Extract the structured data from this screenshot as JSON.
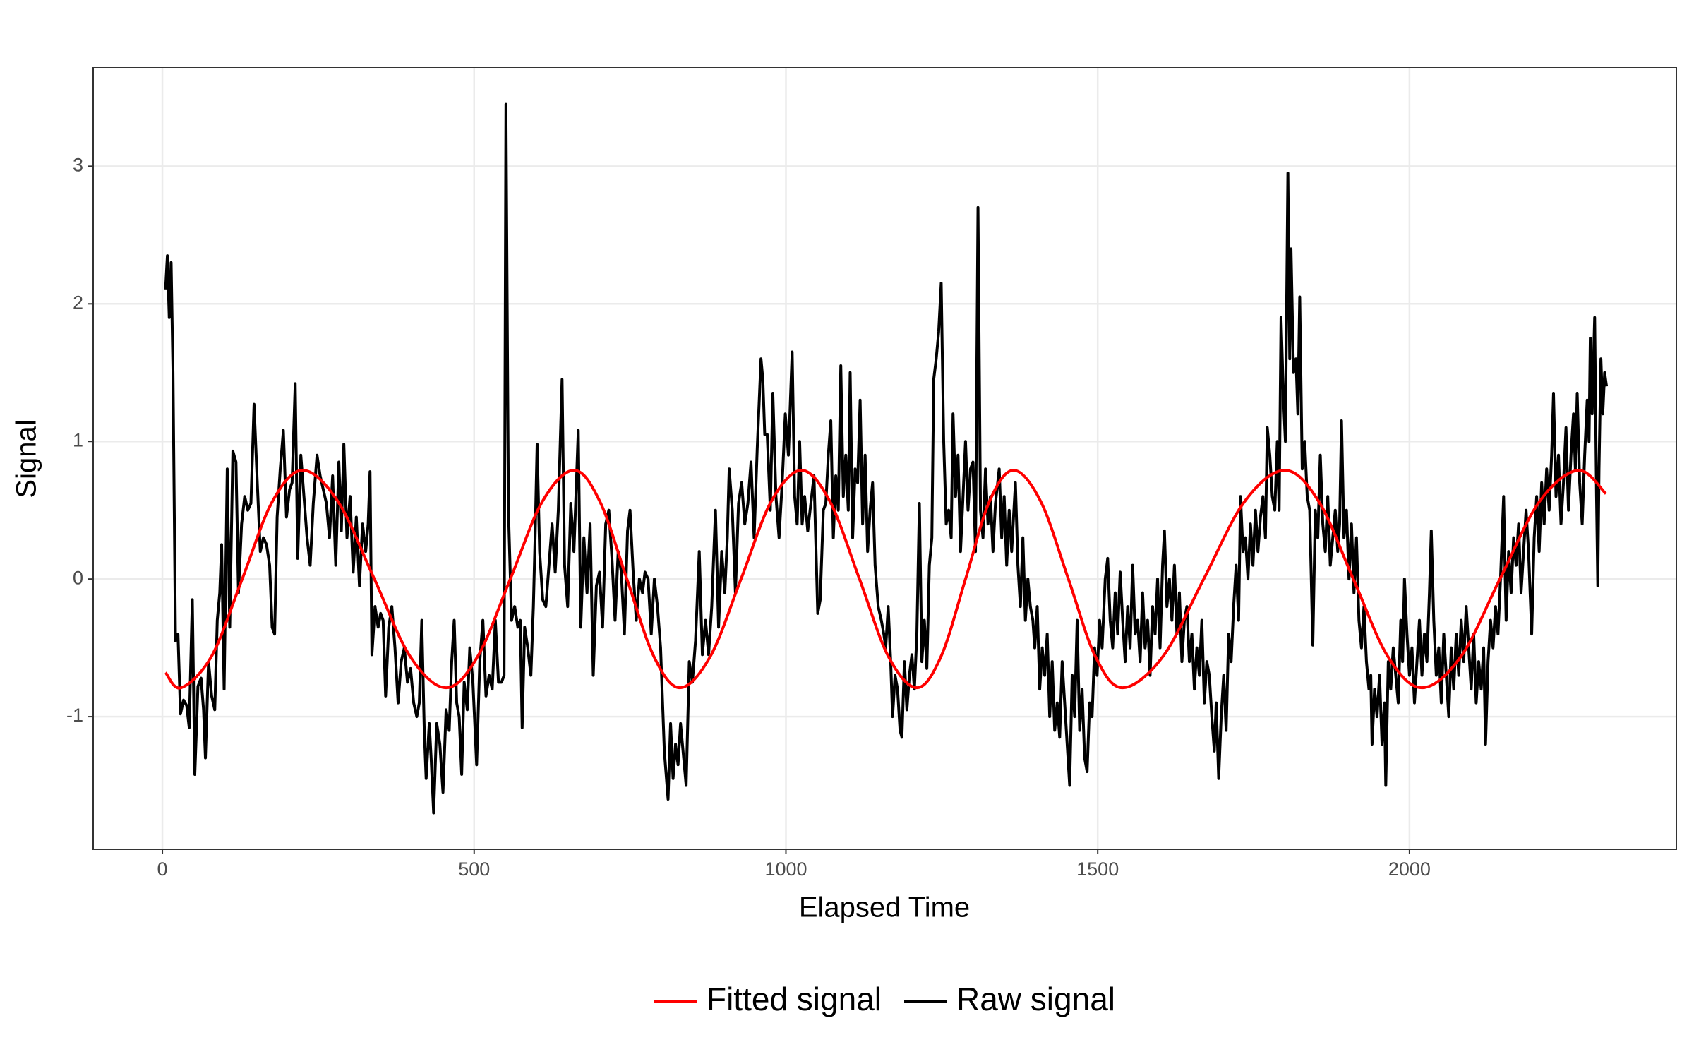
{
  "chart_data": {
    "type": "line",
    "x_label": "Elapsed Time",
    "y_label": "Signal",
    "xlim": [
      -111,
      2428
    ],
    "ylim": [
      -1.964,
      3.715
    ],
    "xticks": [
      0,
      500,
      1000,
      1500,
      2000
    ],
    "yticks": [
      -1,
      0,
      1,
      2,
      3
    ],
    "grid": true,
    "legend": "bottom",
    "series": [
      {
        "name": "Fitted signal",
        "color": "#ff0000",
        "smooth": true,
        "x": [
          5,
          30,
          79,
          128,
          176,
          225,
          282,
          340,
          397,
          455,
          506,
          558,
          609,
          660,
          702,
          745,
          788,
          830,
          879,
          928,
          976,
          1025,
          1071,
          1118,
          1164,
          1210,
          1249,
          1288,
          1326,
          1365,
          1409,
          1453,
          1496,
          1540,
          1605,
          1670,
          1735,
          1800,
          1855,
          1910,
          1965,
          2020,
          2083,
          2145,
          2208,
          2270,
          2315
        ],
        "values": [
          -0.68,
          -0.79,
          -0.56,
          0,
          0.56,
          0.79,
          0.56,
          0,
          -0.56,
          -0.79,
          -0.56,
          0,
          0.56,
          0.79,
          0.56,
          0,
          -0.56,
          -0.79,
          -0.56,
          0,
          0.56,
          0.79,
          0.56,
          0,
          -0.56,
          -0.79,
          -0.56,
          0,
          0.56,
          0.79,
          0.56,
          0,
          -0.56,
          -0.79,
          -0.56,
          0,
          0.56,
          0.79,
          0.56,
          0,
          -0.56,
          -0.79,
          -0.56,
          0,
          0.56,
          0.79,
          0.62
        ]
      },
      {
        "name": "Raw signal",
        "color": "#000000",
        "smooth": false,
        "x": [
          5,
          8,
          11,
          14,
          17,
          21,
          25,
          29,
          34,
          39,
          43,
          48,
          52,
          57,
          62,
          66,
          69,
          74,
          79,
          84,
          88,
          92,
          95,
          99,
          104,
          108,
          113,
          118,
          122,
          127,
          132,
          137,
          142,
          147,
          152,
          157,
          162,
          167,
          172,
          176,
          180,
          184,
          189,
          194,
          199,
          204,
          208,
          213,
          217,
          222,
          227,
          232,
          237,
          242,
          248,
          253,
          258,
          263,
          268,
          273,
          278,
          283,
          287,
          291,
          296,
          301,
          306,
          311,
          316,
          321,
          326,
          330,
          333,
          336,
          341,
          346,
          350,
          354,
          358,
          363,
          368,
          373,
          378,
          383,
          388,
          393,
          398,
          403,
          408,
          412,
          416,
          420,
          423,
          428,
          431,
          435,
          440,
          445,
          450,
          455,
          460,
          464,
          468,
          472,
          476,
          480,
          484,
          489,
          493,
          498,
          504,
          509,
          514,
          519,
          524,
          529,
          534,
          539,
          544,
          548,
          551,
          555,
          560,
          565,
          570,
          574,
          577,
          581,
          586,
          591,
          595,
          598,
          601,
          605,
          610,
          615,
          620,
          625,
          630,
          635,
          641,
          645,
          650,
          655,
          660,
          664,
          667,
          671,
          676,
          681,
          686,
          691,
          696,
          701,
          706,
          711,
          716,
          721,
          726,
          731,
          736,
          741,
          746,
          750,
          755,
          760,
          765,
          770,
          774,
          779,
          784,
          789,
          794,
          799,
          805,
          811,
          815,
          819,
          823,
          827,
          831,
          836,
          840,
          845,
          850,
          855,
          861,
          866,
          871,
          876,
          881,
          887,
          892,
          897,
          902,
          906,
          909,
          914,
          919,
          924,
          929,
          934,
          939,
          944,
          949,
          954,
          960,
          963,
          966,
          970,
          975,
          979,
          984,
          989,
          994,
          999,
          1004,
          1010,
          1014,
          1018,
          1022,
          1026,
          1030,
          1035,
          1040,
          1045,
          1051,
          1055,
          1060,
          1064,
          1068,
          1072,
          1076,
          1080,
          1084,
          1088,
          1092,
          1096,
          1100,
          1103,
          1107,
          1111,
          1115,
          1119,
          1123,
          1127,
          1131,
          1135,
          1139,
          1143,
          1148,
          1153,
          1157,
          1160,
          1164,
          1168,
          1171,
          1175,
          1179,
          1183,
          1186,
          1190,
          1194,
          1198,
          1202,
          1206,
          1210,
          1214,
          1218,
          1222,
          1226,
          1230,
          1234,
          1237,
          1241,
          1245,
          1249,
          1253,
          1257,
          1261,
          1265,
          1268,
          1272,
          1276,
          1280,
          1284,
          1288,
          1292,
          1296,
          1300,
          1304,
          1308,
          1312,
          1316,
          1320,
          1324,
          1328,
          1332,
          1336,
          1342,
          1346,
          1350,
          1354,
          1358,
          1362,
          1368,
          1372,
          1376,
          1380,
          1384,
          1388,
          1392,
          1396,
          1399,
          1403,
          1407,
          1411,
          1415,
          1419,
          1423,
          1427,
          1431,
          1435,
          1439,
          1443,
          1447,
          1451,
          1455,
          1459,
          1463,
          1467,
          1471,
          1475,
          1479,
          1483,
          1487,
          1491,
          1495,
          1499,
          1503,
          1507,
          1512,
          1516,
          1520,
          1524,
          1528,
          1532,
          1536,
          1540,
          1544,
          1548,
          1552,
          1556,
          1560,
          1564,
          1568,
          1572,
          1576,
          1580,
          1584,
          1588,
          1592,
          1596,
          1600,
          1604,
          1607,
          1611,
          1615,
          1619,
          1623,
          1627,
          1631,
          1635,
          1639,
          1643,
          1647,
          1651,
          1655,
          1659,
          1663,
          1667,
          1671,
          1675,
          1679,
          1683,
          1687,
          1690,
          1694,
          1698,
          1702,
          1706,
          1710,
          1714,
          1718,
          1722,
          1726,
          1729,
          1733,
          1737,
          1741,
          1745,
          1749,
          1753,
          1757,
          1761,
          1765,
          1769,
          1772,
          1776,
          1780,
          1784,
          1788,
          1791,
          1794,
          1798,
          1801,
          1805,
          1808,
          1810,
          1814,
          1818,
          1821,
          1824,
          1828,
          1832,
          1836,
          1840,
          1845,
          1849,
          1853,
          1857,
          1861,
          1865,
          1869,
          1873,
          1877,
          1881,
          1885,
          1888,
          1891,
          1895,
          1899,
          1903,
          1907,
          1911,
          1915,
          1919,
          1923,
          1927,
          1931,
          1935,
          1938,
          1940,
          1944,
          1948,
          1952,
          1956,
          1960,
          1962,
          1966,
          1970,
          1974,
          1978,
          1982,
          1986,
          1989,
          1992,
          1996,
          2000,
          2004,
          2008,
          2012,
          2016,
          2020,
          2024,
          2028,
          2032,
          2035,
          2039,
          2043,
          2047,
          2051,
          2055,
          2059,
          2063,
          2067,
          2071,
          2075,
          2079,
          2083,
          2087,
          2091,
          2095,
          2099,
          2103,
          2107,
          2111,
          2115,
          2119,
          2122,
          2126,
          2130,
          2134,
          2138,
          2142,
          2146,
          2151,
          2155,
          2159,
          2163,
          2167,
          2171,
          2175,
          2179,
          2183,
          2187,
          2191,
          2196,
          2200,
          2204,
          2208,
          2212,
          2216,
          2220,
          2224,
          2228,
          2231,
          2235,
          2239,
          2243,
          2247,
          2251,
          2255,
          2259,
          2263,
          2266,
          2269,
          2273,
          2277,
          2281,
          2285,
          2288,
          2290,
          2293,
          2297,
          2300,
          2302,
          2304,
          2307,
          2310,
          2313,
          2316
        ],
        "values": [
          2.1,
          2.35,
          1.9,
          2.3,
          1.5,
          -0.45,
          -0.4,
          -0.98,
          -0.88,
          -0.92,
          -1.08,
          -0.15,
          -1.42,
          -0.78,
          -0.72,
          -0.95,
          -1.3,
          -0.6,
          -0.85,
          -0.95,
          -0.3,
          -0.1,
          0.25,
          -0.8,
          0.8,
          -0.35,
          0.93,
          0.85,
          -0.1,
          0.4,
          0.6,
          0.5,
          0.55,
          1.27,
          0.72,
          0.2,
          0.3,
          0.25,
          0.1,
          -0.35,
          -0.4,
          0.45,
          0.8,
          1.08,
          0.45,
          0.65,
          0.7,
          1.42,
          0.15,
          0.9,
          0.6,
          0.3,
          0.1,
          0.55,
          0.9,
          0.75,
          0.65,
          0.55,
          0.3,
          0.75,
          0.1,
          0.85,
          0.35,
          0.98,
          0.3,
          0.6,
          0.05,
          0.45,
          -0.05,
          0.4,
          0.2,
          0.4,
          0.78,
          -0.55,
          -0.2,
          -0.35,
          -0.25,
          -0.3,
          -0.85,
          -0.35,
          -0.2,
          -0.5,
          -0.9,
          -0.6,
          -0.5,
          -0.75,
          -0.65,
          -0.9,
          -1.0,
          -0.9,
          -0.3,
          -1.1,
          -1.45,
          -1.05,
          -1.3,
          -1.7,
          -1.05,
          -1.2,
          -1.55,
          -0.95,
          -1.1,
          -0.6,
          -0.3,
          -0.9,
          -1.0,
          -1.42,
          -0.75,
          -0.95,
          -0.5,
          -0.75,
          -1.35,
          -0.6,
          -0.3,
          -0.85,
          -0.7,
          -0.8,
          -0.3,
          -0.75,
          -0.75,
          -0.7,
          3.45,
          0.5,
          -0.3,
          -0.2,
          -0.35,
          -0.3,
          -1.08,
          -0.35,
          -0.5,
          -0.7,
          -0.2,
          0.35,
          0.98,
          0.2,
          -0.15,
          -0.2,
          0.1,
          0.4,
          0.05,
          0.5,
          1.45,
          0.1,
          -0.2,
          0.55,
          0.2,
          0.7,
          1.08,
          -0.35,
          0.3,
          -0.1,
          0.4,
          -0.7,
          -0.05,
          0.05,
          -0.35,
          0.4,
          0.5,
          0.15,
          -0.3,
          0.2,
          0.05,
          -0.4,
          0.35,
          0.5,
          0.05,
          -0.3,
          0.0,
          -0.1,
          0.05,
          0.0,
          -0.4,
          0.0,
          -0.2,
          -0.5,
          -1.25,
          -1.6,
          -1.05,
          -1.45,
          -1.2,
          -1.35,
          -1.05,
          -1.3,
          -1.5,
          -0.6,
          -0.75,
          -0.45,
          0.2,
          -0.55,
          -0.3,
          -0.55,
          -0.2,
          0.5,
          -0.35,
          0.2,
          -0.1,
          0.3,
          0.8,
          0.5,
          -0.1,
          0.55,
          0.7,
          0.4,
          0.55,
          0.85,
          0.3,
          0.95,
          1.6,
          1.45,
          1.05,
          1.05,
          0.5,
          1.35,
          0.6,
          0.3,
          0.7,
          1.2,
          0.9,
          1.65,
          0.6,
          0.4,
          1.0,
          0.4,
          0.6,
          0.35,
          0.55,
          0.75,
          -0.25,
          -0.15,
          0.5,
          0.55,
          0.9,
          1.15,
          0.3,
          0.75,
          0.5,
          1.55,
          0.6,
          0.9,
          0.5,
          1.5,
          0.3,
          0.8,
          0.7,
          1.3,
          0.4,
          0.9,
          0.2,
          0.5,
          0.7,
          0.1,
          -0.2,
          -0.3,
          -0.4,
          -0.5,
          -0.2,
          -0.6,
          -1.0,
          -0.7,
          -0.8,
          -1.1,
          -1.15,
          -0.6,
          -0.95,
          -0.7,
          -0.55,
          -0.8,
          -0.4,
          0.55,
          -0.6,
          -0.3,
          -0.65,
          0.1,
          0.3,
          1.45,
          1.6,
          1.8,
          2.15,
          1.0,
          0.4,
          0.5,
          0.3,
          1.2,
          0.6,
          0.9,
          0.2,
          0.6,
          1.0,
          0.5,
          0.8,
          0.85,
          0.2,
          2.7,
          0.5,
          0.3,
          0.8,
          0.4,
          0.6,
          0.2,
          0.55,
          0.8,
          0.3,
          0.6,
          0.1,
          0.5,
          0.2,
          0.7,
          0.1,
          -0.2,
          0.3,
          -0.3,
          0.0,
          -0.2,
          -0.3,
          -0.5,
          -0.2,
          -0.8,
          -0.5,
          -0.7,
          -0.4,
          -1.0,
          -0.6,
          -1.1,
          -0.9,
          -1.15,
          -0.6,
          -0.9,
          -1.2,
          -1.5,
          -0.7,
          -1.0,
          -0.3,
          -1.1,
          -0.8,
          -1.3,
          -1.4,
          -0.9,
          -1.0,
          -0.5,
          -0.7,
          -0.3,
          -0.5,
          0.0,
          0.15,
          -0.3,
          -0.5,
          -0.1,
          -0.4,
          0.05,
          -0.3,
          -0.6,
          -0.2,
          -0.5,
          0.1,
          -0.4,
          -0.3,
          -0.6,
          -0.1,
          -0.5,
          -0.3,
          -0.7,
          -0.2,
          -0.4,
          0.0,
          -0.5,
          0.1,
          0.35,
          -0.2,
          0.0,
          -0.3,
          0.1,
          -0.4,
          -0.1,
          -0.6,
          -0.3,
          -0.2,
          -0.6,
          -0.4,
          -0.8,
          -0.5,
          -0.7,
          -0.3,
          -0.9,
          -0.6,
          -0.7,
          -1.0,
          -1.25,
          -0.9,
          -1.45,
          -1.0,
          -0.7,
          -1.1,
          -0.4,
          -0.6,
          -0.2,
          0.1,
          -0.3,
          0.6,
          0.2,
          0.3,
          0.0,
          0.4,
          0.1,
          0.5,
          0.2,
          0.45,
          0.6,
          0.3,
          1.1,
          0.9,
          0.6,
          0.5,
          1.0,
          0.5,
          1.9,
          1.3,
          1.0,
          2.95,
          1.6,
          2.4,
          1.5,
          1.6,
          1.2,
          2.05,
          0.8,
          1.0,
          0.6,
          0.5,
          -0.48,
          0.5,
          0.3,
          0.9,
          0.4,
          0.2,
          0.6,
          0.1,
          0.3,
          0.5,
          0.2,
          0.4,
          1.15,
          0.3,
          0.5,
          0.0,
          0.4,
          -0.1,
          0.3,
          -0.3,
          -0.5,
          -0.2,
          -0.6,
          -0.8,
          -0.7,
          -1.2,
          -0.8,
          -1.0,
          -0.7,
          -1.2,
          -0.9,
          -1.5,
          -0.6,
          -0.8,
          -0.5,
          -0.7,
          -0.9,
          -0.3,
          -0.6,
          0.0,
          -0.4,
          -0.7,
          -0.5,
          -0.9,
          -0.6,
          -0.3,
          -0.7,
          -0.4,
          -0.6,
          -0.1,
          0.35,
          -0.3,
          -0.7,
          -0.5,
          -0.9,
          -0.4,
          -0.7,
          -1.0,
          -0.5,
          -0.8,
          -0.4,
          -0.7,
          -0.3,
          -0.6,
          -0.2,
          -0.5,
          -0.8,
          -0.4,
          -0.9,
          -0.6,
          -0.8,
          -0.5,
          -1.2,
          -0.6,
          -0.3,
          -0.5,
          -0.2,
          -0.4,
          0.0,
          0.6,
          -0.3,
          0.2,
          -0.1,
          0.3,
          0.1,
          0.4,
          -0.1,
          0.2,
          0.5,
          0.2,
          -0.4,
          0.3,
          0.6,
          0.2,
          0.7,
          0.4,
          0.8,
          0.5,
          0.9,
          1.35,
          0.6,
          0.9,
          0.4,
          0.7,
          1.1,
          0.5,
          0.9,
          1.2,
          0.8,
          1.35,
          0.7,
          0.4,
          0.9,
          1.3,
          1.0,
          1.75,
          1.2,
          1.9,
          0.6,
          -0.05,
          0.8,
          1.6,
          1.2,
          1.5,
          1.4
        ]
      }
    ]
  }
}
